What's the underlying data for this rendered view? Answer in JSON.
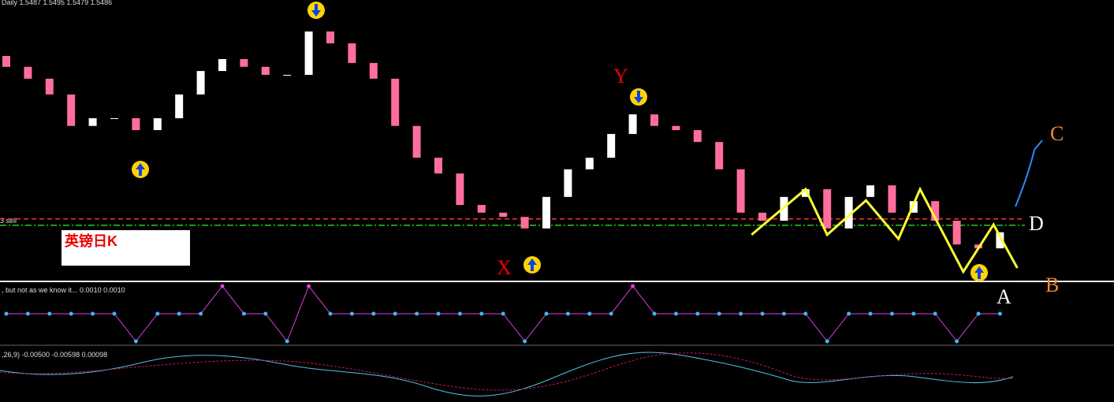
{
  "chart_data": {
    "type": "candlestick",
    "title": "Daily  1.5487 1.5495 1.5479 1.5486",
    "open": [
      1.599,
      1.5959,
      1.5925,
      1.588,
      1.579,
      1.5812,
      1.5812,
      1.5778,
      1.5812,
      1.588,
      1.5947,
      1.5981,
      1.5959,
      1.5936,
      1.5936,
      1.606,
      1.6026,
      1.597,
      1.5925,
      1.579,
      1.5699,
      1.5654,
      1.5564,
      1.5542,
      1.553,
      1.5497,
      1.5587,
      1.5666,
      1.5699,
      1.5767,
      1.5823,
      1.579,
      1.5778,
      1.5744,
      1.5666,
      1.5542,
      1.5519,
      1.5587,
      1.5609,
      1.5497,
      1.5587,
      1.562,
      1.5542,
      1.5575,
      1.5519,
      1.5451,
      1.544
    ],
    "close": [
      1.5959,
      1.5925,
      1.588,
      1.579,
      1.5812,
      1.5812,
      1.5778,
      1.5812,
      1.588,
      1.5947,
      1.5981,
      1.5959,
      1.5936,
      1.5936,
      1.606,
      1.6026,
      1.597,
      1.5925,
      1.579,
      1.5699,
      1.5654,
      1.5564,
      1.5542,
      1.553,
      1.5497,
      1.5587,
      1.5666,
      1.5699,
      1.5767,
      1.5823,
      1.579,
      1.5778,
      1.5744,
      1.5666,
      1.5542,
      1.5519,
      1.5587,
      1.5609,
      1.5497,
      1.5587,
      1.562,
      1.5542,
      1.5575,
      1.5519,
      1.5451,
      1.544,
      1.5486
    ],
    "ylim": [
      1.535,
      1.615
    ],
    "up_color": "#ffffff",
    "down_color": "#ff6e9c",
    "zigzag": {
      "color": "#ffff33",
      "x": [
        34.5,
        37,
        38,
        39.8,
        41.3,
        42.3,
        44.3,
        45.7,
        46.8
      ],
      "values": [
        1.5479,
        1.5609,
        1.5479,
        1.5577,
        1.5467,
        1.5609,
        1.5373,
        1.5508,
        1.5384
      ]
    },
    "levels": [
      {
        "value": 1.5524,
        "color": "#ff3030"
      },
      {
        "value": 1.5506,
        "color": "#22cc22"
      }
    ],
    "level_label": "3 sell",
    "annotation": "英镑日K",
    "labels": [
      "X",
      "Y",
      "A",
      "B",
      "C",
      "D"
    ],
    "indicator": {
      "label": ", but not as we know it...  0.0010 0.0010",
      "ylim": [
        -1,
        1
      ],
      "values": [
        0,
        0,
        0,
        0,
        0,
        0,
        -1,
        0,
        0,
        0,
        1,
        0,
        0,
        -1,
        1,
        0,
        0,
        0,
        0,
        0,
        0,
        0,
        0,
        0,
        -1,
        0,
        0,
        0,
        0,
        1,
        0,
        0,
        0,
        0,
        0,
        0,
        0,
        0,
        -1,
        0,
        0,
        0,
        0,
        0,
        -1,
        0,
        0
      ]
    },
    "macd_label": ",26,9) -0.00500 -0.00598 0.00098"
  }
}
